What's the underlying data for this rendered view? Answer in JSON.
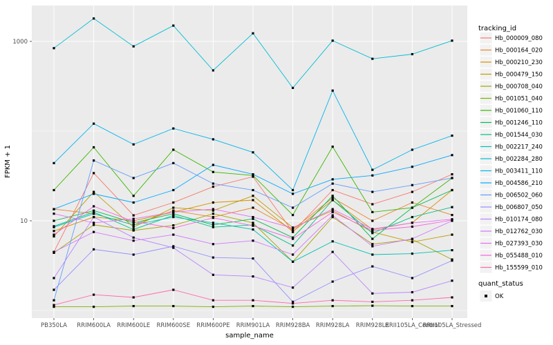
{
  "figure": {
    "background": "#FFFFFF",
    "panel_background": "#EBEBEB",
    "gridline_color": "#FFFFFF",
    "tick_color": "#333333",
    "point_color": "#000000"
  },
  "axes": {
    "x_title": "sample_name",
    "y_title": "FPKM + 1",
    "y_tick_labels": [
      "1000",
      "10"
    ],
    "y_tick_values": [
      1000,
      10
    ],
    "y_minor_values": [
      100,
      1
    ]
  },
  "legend": {
    "tracking_title": "tracking_id",
    "quant_title": "quant_status",
    "quant_items": [
      {
        "label": "OK",
        "marker": "black-square"
      }
    ],
    "key_fill": "#F2F2F2"
  },
  "chart_data": {
    "type": "line",
    "title": "",
    "xlabel": "sample_name",
    "ylabel": "FPKM + 1",
    "y_scale": "log10",
    "ylim": [
      1,
      2600
    ],
    "grid": true,
    "legend_position": "right",
    "point_marker": "black-square",
    "categories": [
      "PB350LA",
      "RRIM600LA",
      "RRIM600LE",
      "RRIM600SE",
      "RRIM600PE",
      "RRIM901LA",
      "RRIM928BA",
      "RRIM928LA",
      "RRIM928LE",
      "RRII105LA_Control",
      "RRII105LA_Stressed"
    ],
    "series": [
      {
        "name": "Hb_000009_080",
        "color": "#F8766D",
        "values": [
          4.5,
          34,
          11.5,
          16,
          24,
          31,
          7.5,
          22,
          15.3,
          21,
          33
        ]
      },
      {
        "name": "Hb_000164_020",
        "color": "#EA8331",
        "values": [
          13.5,
          12,
          9,
          13,
          11,
          14,
          8,
          18,
          10,
          16,
          11.6
        ]
      },
      {
        "name": "Hb_000210_230",
        "color": "#D89000",
        "values": [
          7.7,
          11,
          10,
          12.5,
          16,
          17,
          7.6,
          17,
          8,
          9.5,
          22
        ]
      },
      {
        "name": "Hb_000479_150",
        "color": "#C09B00",
        "values": [
          6.7,
          21,
          8.5,
          14,
          13,
          19,
          8.4,
          13,
          7.5,
          5.8,
          7
        ]
      },
      {
        "name": "Hb_000708_040",
        "color": "#A3A500",
        "values": [
          4.4,
          9,
          7.8,
          8.9,
          12,
          9.5,
          3.5,
          11,
          5.5,
          6.2,
          3.7
        ]
      },
      {
        "name": "Hb_001051_040",
        "color": "#7CAE00",
        "values": [
          1.1,
          1.1,
          1.12,
          1.12,
          1.1,
          1.12,
          1.1,
          1.12,
          1.13,
          1.12,
          1.12
        ]
      },
      {
        "name": "Hb_001060_110",
        "color": "#39B600",
        "values": [
          22,
          66,
          19,
          62,
          35,
          32,
          11.6,
          67,
          12.5,
          14,
          30
        ]
      },
      {
        "name": "Hb_001246_110",
        "color": "#00BB4E",
        "values": [
          10,
          13,
          9.5,
          12,
          9,
          10.5,
          6.5,
          19,
          6.3,
          14,
          22
        ]
      },
      {
        "name": "Hb_001544_030",
        "color": "#00C087",
        "values": [
          8.7,
          12.5,
          8,
          11.5,
          8.5,
          9,
          5.3,
          17,
          7.3,
          11,
          14.2
        ]
      },
      {
        "name": "Hb_002217_240",
        "color": "#00C0B2",
        "values": [
          8.5,
          12,
          9,
          11,
          9.5,
          8,
          3.5,
          5.9,
          4.2,
          4.3,
          4.7
        ]
      },
      {
        "name": "Hb_002284_280",
        "color": "#00BDD3",
        "values": [
          840,
          1800,
          880,
          1500,
          475,
          1230,
          303,
          1020,
          640,
          720,
          1020
        ]
      },
      {
        "name": "Hb_003411_110",
        "color": "#00B5EB",
        "values": [
          44,
          121,
          71,
          107,
          81,
          58,
          22,
          283,
          37,
          62,
          89
        ]
      },
      {
        "name": "Hb_004586_210",
        "color": "#00A9FF",
        "values": [
          13.5,
          20,
          16,
          22,
          42,
          33,
          20,
          29,
          32,
          40,
          54
        ]
      },
      {
        "name": "Hb_006502_060",
        "color": "#619CFF",
        "values": [
          1.3,
          47,
          30,
          44,
          26,
          22,
          14,
          26,
          21,
          25,
          30
        ]
      },
      {
        "name": "Hb_006807_050",
        "color": "#9590FF",
        "values": [
          1.7,
          4.8,
          4.2,
          5.2,
          3.9,
          3.8,
          1.25,
          2.1,
          3.1,
          2.3,
          3.6
        ]
      },
      {
        "name": "Hb_010174_080",
        "color": "#B983FF",
        "values": [
          2.3,
          11,
          6.5,
          5,
          2.5,
          2.4,
          1.8,
          4.5,
          1.55,
          1.6,
          2.15
        ]
      },
      {
        "name": "Hb_012762_030",
        "color": "#D376FF",
        "values": [
          4.5,
          7.5,
          6,
          7,
          5.5,
          6,
          4.2,
          11.5,
          5.2,
          6.3,
          10
        ]
      },
      {
        "name": "Hb_027393_030",
        "color": "#E76BF3",
        "values": [
          12,
          9.5,
          10.5,
          12.5,
          13.5,
          11,
          8.3,
          13.5,
          8.1,
          9.5,
          10.4
        ]
      },
      {
        "name": "Hb_055488_010",
        "color": "#F763E0",
        "values": [
          7,
          14.5,
          9.8,
          8.3,
          10.8,
          8.8,
          6.3,
          12.5,
          7.8,
          8.6,
          10.2
        ]
      },
      {
        "name": "Hb_155599_010",
        "color": "#FF65AC",
        "values": [
          1.15,
          1.5,
          1.4,
          1.7,
          1.3,
          1.3,
          1.2,
          1.3,
          1.25,
          1.3,
          1.4
        ]
      }
    ]
  }
}
